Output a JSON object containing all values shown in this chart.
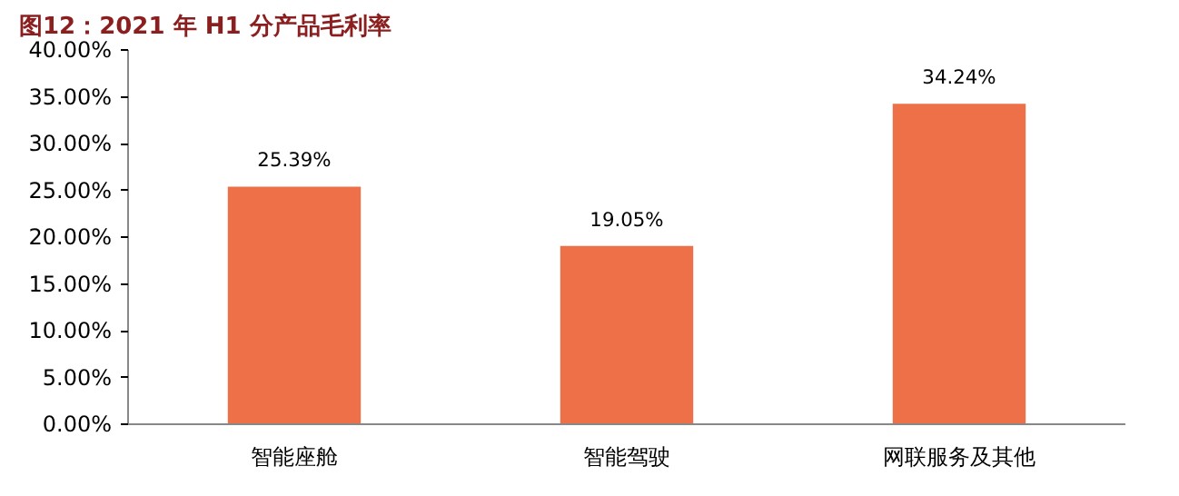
{
  "chart_data": {
    "type": "bar",
    "title": "图12：2021 年 H1 分产品毛利率",
    "categories": [
      "智能座舱",
      "智能驾驶",
      "网联服务及其他"
    ],
    "values": [
      25.39,
      19.05,
      34.24
    ],
    "value_labels": [
      "25.39%",
      "19.05%",
      "34.24%"
    ],
    "color": "#ed7049",
    "ylim": [
      0,
      40
    ],
    "yticks": [
      {
        "value": 0,
        "label": "0.00%"
      },
      {
        "value": 5,
        "label": "5.00%"
      },
      {
        "value": 10,
        "label": "10.00%"
      },
      {
        "value": 15,
        "label": "15.00%"
      },
      {
        "value": 20,
        "label": "20.00%"
      },
      {
        "value": 25,
        "label": "25.00%"
      },
      {
        "value": 30,
        "label": "30.00%"
      },
      {
        "value": 35,
        "label": "35.00%"
      },
      {
        "value": 40,
        "label": "40.00%"
      }
    ],
    "grid": false
  }
}
